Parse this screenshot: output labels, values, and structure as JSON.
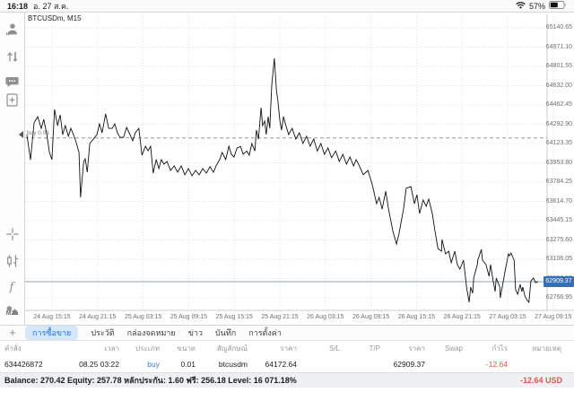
{
  "status_bar": {
    "time": "16:18",
    "date": "อ. 27 ส.ค.",
    "battery_percent": "57%"
  },
  "sidebar": {
    "timeframe_label": "M15",
    "icons": [
      "account-icon",
      "trade-arrows-icon",
      "chat-icon",
      "new-order-icon",
      "crosshair-icon",
      "chart-style-icon",
      "indicators-icon",
      "objects-icon"
    ]
  },
  "chart": {
    "symbol_label": "BTCUSDm, M15",
    "current_price_label": "62909.37",
    "position_line": {
      "label": "buy 0.01",
      "price": 64172.64
    }
  },
  "chart_data": {
    "type": "line",
    "title": "BTCUSDm, M15",
    "symbol": "BTCUSDm",
    "timeframe": "M15",
    "y_ticks": [
      65140.65,
      64971.1,
      64801.55,
      64632.0,
      64462.45,
      64292.9,
      64123.35,
      63953.8,
      63784.25,
      63614.7,
      63445.15,
      63275.6,
      63106.05,
      62936.5,
      62766.95
    ],
    "time_labels": [
      "24 Aug 15:15",
      "24 Aug 21:15",
      "25 Aug 03:15",
      "25 Aug 09:15",
      "25 Aug 15:15",
      "25 Aug 21:15",
      "26 Aug 03:15",
      "26 Aug 09:15",
      "26 Aug 15:15",
      "26 Aug 21:15",
      "27 Aug 03:15",
      "27 Aug 09:15"
    ],
    "current_price": 62909.37,
    "buy_price": 64172.64,
    "grid": "dotted",
    "points": [
      [
        0,
        64200
      ],
      [
        0.007,
        63980
      ],
      [
        0.014,
        64305
      ],
      [
        0.021,
        64360
      ],
      [
        0.028,
        64257
      ],
      [
        0.033,
        64336
      ],
      [
        0.039,
        64202
      ],
      [
        0.044,
        64045
      ],
      [
        0.049,
        63982
      ],
      [
        0.054,
        64423
      ],
      [
        0.06,
        64281
      ],
      [
        0.065,
        64376
      ],
      [
        0.07,
        64202
      ],
      [
        0.075,
        64281
      ],
      [
        0.081,
        64187
      ],
      [
        0.086,
        64257
      ],
      [
        0.091,
        64202
      ],
      [
        0.096,
        64139
      ],
      [
        0.102,
        64045
      ],
      [
        0.105,
        63650
      ],
      [
        0.111,
        63966
      ],
      [
        0.114,
        63989
      ],
      [
        0.118,
        63871
      ],
      [
        0.123,
        64123
      ],
      [
        0.13,
        64163
      ],
      [
        0.137,
        64202
      ],
      [
        0.142,
        64297
      ],
      [
        0.147,
        64218
      ],
      [
        0.154,
        64384
      ],
      [
        0.16,
        64257
      ],
      [
        0.167,
        64257
      ],
      [
        0.172,
        64297
      ],
      [
        0.177,
        64218
      ],
      [
        0.182,
        64178
      ],
      [
        0.189,
        64178
      ],
      [
        0.195,
        64265
      ],
      [
        0.2,
        64218
      ],
      [
        0.207,
        64147
      ],
      [
        0.212,
        64218
      ],
      [
        0.219,
        64257
      ],
      [
        0.225,
        64021
      ],
      [
        0.232,
        64100
      ],
      [
        0.237,
        64060
      ],
      [
        0.242,
        64100
      ],
      [
        0.247,
        63863
      ],
      [
        0.253,
        63982
      ],
      [
        0.258,
        63903
      ],
      [
        0.263,
        63982
      ],
      [
        0.268,
        63942
      ],
      [
        0.274,
        63966
      ],
      [
        0.281,
        63887
      ],
      [
        0.288,
        63927
      ],
      [
        0.295,
        63871
      ],
      [
        0.302,
        63927
      ],
      [
        0.309,
        63848
      ],
      [
        0.316,
        63903
      ],
      [
        0.323,
        63840
      ],
      [
        0.33,
        63887
      ],
      [
        0.337,
        63848
      ],
      [
        0.344,
        63903
      ],
      [
        0.351,
        63863
      ],
      [
        0.358,
        63919
      ],
      [
        0.365,
        63871
      ],
      [
        0.37,
        63927
      ],
      [
        0.377,
        63982
      ],
      [
        0.382,
        64045
      ],
      [
        0.389,
        63982
      ],
      [
        0.395,
        64100
      ],
      [
        0.4,
        64029
      ],
      [
        0.405,
        64005
      ],
      [
        0.411,
        64084
      ],
      [
        0.418,
        64097
      ],
      [
        0.423,
        64029
      ],
      [
        0.43,
        64058
      ],
      [
        0.435,
        64021
      ],
      [
        0.44,
        64123
      ],
      [
        0.446,
        64058
      ],
      [
        0.449,
        64242
      ],
      [
        0.453,
        64163
      ],
      [
        0.458,
        64439
      ],
      [
        0.461,
        64281
      ],
      [
        0.465,
        64321
      ],
      [
        0.468,
        64202
      ],
      [
        0.472,
        64360
      ],
      [
        0.475,
        64257
      ],
      [
        0.479,
        64636
      ],
      [
        0.484,
        64873
      ],
      [
        0.488,
        64597
      ],
      [
        0.491,
        64494
      ],
      [
        0.495,
        64321
      ],
      [
        0.498,
        64242
      ],
      [
        0.502,
        64360
      ],
      [
        0.505,
        64305
      ],
      [
        0.512,
        64202
      ],
      [
        0.519,
        64257
      ],
      [
        0.526,
        64163
      ],
      [
        0.533,
        64218
      ],
      [
        0.54,
        64123
      ],
      [
        0.547,
        64187
      ],
      [
        0.554,
        64100
      ],
      [
        0.561,
        64163
      ],
      [
        0.568,
        64058
      ],
      [
        0.575,
        64123
      ],
      [
        0.582,
        64029
      ],
      [
        0.589,
        64084
      ],
      [
        0.596,
        63998
      ],
      [
        0.604,
        64058
      ],
      [
        0.611,
        63966
      ],
      [
        0.618,
        64029
      ],
      [
        0.625,
        63942
      ],
      [
        0.632,
        64005
      ],
      [
        0.639,
        63927
      ],
      [
        0.644,
        63982
      ],
      [
        0.649,
        63940
      ],
      [
        0.658,
        63850
      ],
      [
        0.667,
        63887
      ],
      [
        0.675,
        63770
      ],
      [
        0.684,
        63595
      ],
      [
        0.689,
        63650
      ],
      [
        0.695,
        63548
      ],
      [
        0.702,
        63705
      ],
      [
        0.707,
        63556
      ],
      [
        0.716,
        63351
      ],
      [
        0.723,
        63240
      ],
      [
        0.728,
        63335
      ],
      [
        0.737,
        63556
      ],
      [
        0.742,
        63729
      ],
      [
        0.751,
        63745
      ],
      [
        0.758,
        63595
      ],
      [
        0.763,
        63674
      ],
      [
        0.768,
        63508
      ],
      [
        0.775,
        63627
      ],
      [
        0.781,
        63572
      ],
      [
        0.786,
        63635
      ],
      [
        0.793,
        63508
      ],
      [
        0.798,
        63358
      ],
      [
        0.804,
        63200
      ],
      [
        0.811,
        63177
      ],
      [
        0.812,
        63280
      ],
      [
        0.819,
        63153
      ],
      [
        0.825,
        63177
      ],
      [
        0.83,
        63075
      ],
      [
        0.837,
        63177
      ],
      [
        0.842,
        63059
      ],
      [
        0.847,
        63019
      ],
      [
        0.854,
        63098
      ],
      [
        0.86,
        62862
      ],
      [
        0.865,
        62728
      ],
      [
        0.868,
        62862
      ],
      [
        0.872,
        62807
      ],
      [
        0.874,
        62941
      ],
      [
        0.881,
        63059
      ],
      [
        0.882,
        63098
      ],
      [
        0.889,
        63193
      ],
      [
        0.891,
        63098
      ],
      [
        0.898,
        63059
      ],
      [
        0.904,
        62956
      ],
      [
        0.907,
        63059
      ],
      [
        0.912,
        62917
      ],
      [
        0.916,
        62822
      ],
      [
        0.918,
        62941
      ],
      [
        0.925,
        62862
      ],
      [
        0.926,
        62767
      ],
      [
        0.933,
        62941
      ],
      [
        0.935,
        62996
      ],
      [
        0.942,
        63153
      ],
      [
        0.944,
        63137
      ],
      [
        0.947,
        63161
      ],
      [
        0.953,
        63098
      ],
      [
        0.956,
        62838
      ],
      [
        0.96,
        62799
      ],
      [
        0.965,
        62885
      ],
      [
        0.968,
        62822
      ],
      [
        0.97,
        62862
      ],
      [
        0.974,
        62783
      ],
      [
        0.979,
        62743
      ],
      [
        0.982,
        62728
      ],
      [
        0.986,
        62917
      ],
      [
        0.991,
        62941
      ],
      [
        0.995,
        62901
      ],
      [
        1,
        62909.37
      ]
    ]
  },
  "tabs": {
    "add_label": "+",
    "items": [
      {
        "label": "การซื้อขาย",
        "active": true
      },
      {
        "label": "ประวัติ",
        "active": false
      },
      {
        "label": "กล่องจดหมาย",
        "active": false
      },
      {
        "label": "ข่าว",
        "active": false
      },
      {
        "label": "บันทึก",
        "active": false
      },
      {
        "label": "การตั้งค่า",
        "active": false
      }
    ]
  },
  "table": {
    "headers": [
      "คำสั่ง",
      "เวลา",
      "ประเภท",
      "ขนาด",
      "สัญลักษณ์",
      "ราคา",
      "S/L",
      "T/P",
      "ราคา",
      "Swap",
      "กำไร",
      "หมายเหตุ"
    ],
    "row": [
      "634426872",
      "08.25 03:22",
      "buy",
      "0.01",
      "btcusdm",
      "64172.64",
      "",
      "",
      "62909.37",
      "",
      "-12.64",
      ""
    ]
  },
  "footer": {
    "balance_text": "Balance: 270.42 Equity: 257.78 หลักประกัน: 1.60 ฟรี: 256.18 Level: 16 071.18%",
    "profit_text": "-12.64  USD"
  },
  "colors": {
    "accent_blue": "#3470b8",
    "buy_blue": "#2f7cd6",
    "loss_red": "#e25349",
    "line_black": "#111111"
  }
}
